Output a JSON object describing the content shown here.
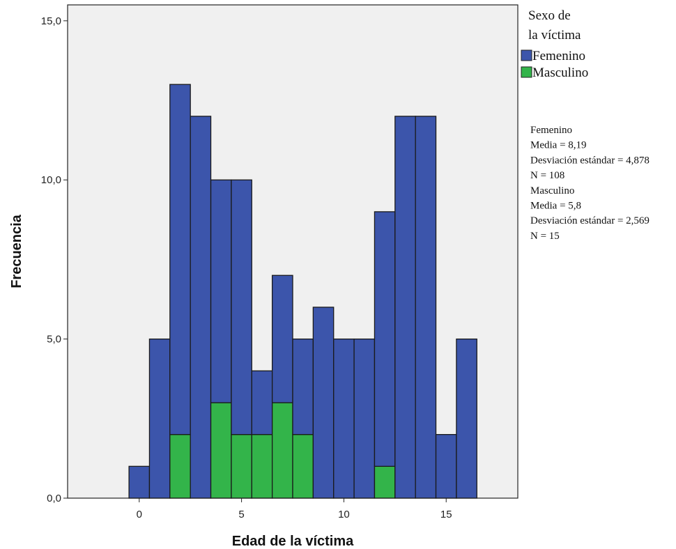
{
  "chart_data": {
    "type": "bar",
    "stacked": true,
    "xlabel": "Edad de la víctima",
    "ylabel": "Frecuencia",
    "x": [
      0,
      1,
      2,
      3,
      4,
      5,
      6,
      7,
      8,
      9,
      10,
      11,
      12,
      13,
      14,
      15,
      16
    ],
    "xlim": [
      -3.5,
      18.5
    ],
    "ylim": [
      0,
      15.5
    ],
    "x_ticks": [
      0,
      5,
      10,
      15
    ],
    "x_tick_labels": [
      "0",
      "5",
      "10",
      "15"
    ],
    "y_ticks": [
      0,
      5,
      10,
      15
    ],
    "y_tick_labels": [
      "0,0",
      "5,0",
      "10,0",
      "15,0"
    ],
    "series": [
      {
        "name": "Masculino",
        "color": "#33b44a",
        "values": [
          0,
          0,
          2,
          0,
          3,
          2,
          2,
          3,
          2,
          0,
          0,
          0,
          1,
          0,
          0,
          0,
          0
        ]
      },
      {
        "name": "Femenino",
        "color": "#3c55ab",
        "values": [
          1,
          5,
          11,
          12,
          7,
          8,
          2,
          4,
          3,
          6,
          5,
          5,
          8,
          12,
          12,
          2,
          5
        ]
      }
    ],
    "legend": {
      "title_lines": [
        "Sexo de",
        "la víctima"
      ],
      "placement": "right",
      "entries": [
        {
          "label": "Femenino",
          "color": "#3c55ab"
        },
        {
          "label": "Masculino",
          "color": "#33b44a"
        }
      ]
    },
    "stats_lines": [
      "Femenino",
      "Media = 8,19",
      "Desviación estándar = 4,878",
      "N = 108",
      "Masculino",
      "Media = 5,8",
      "Desviación estándar = 2,569",
      "N = 15"
    ],
    "grid": false,
    "plot_background": "#f0f0f0"
  }
}
